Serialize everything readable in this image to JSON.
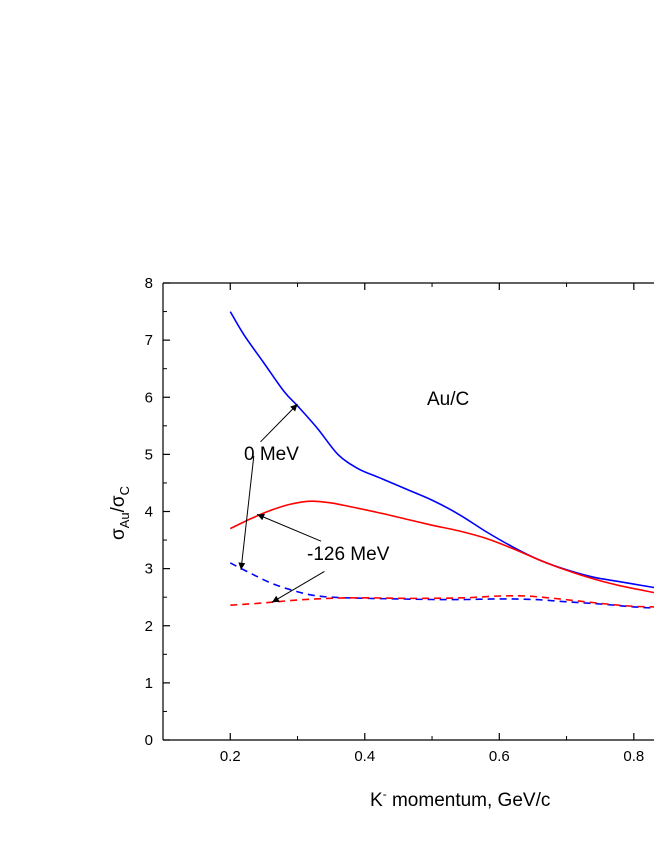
{
  "chart_data": {
    "type": "line",
    "title": "",
    "xlabel": {
      "prefix": "K",
      "sup": "-",
      "rest": " momentum, GeV/c"
    },
    "ylabel": {
      "main1": "σ",
      "sub1": "Au",
      "slash": "/",
      "main2": "σ",
      "sub2": "C"
    },
    "xlim": [
      0.1,
      0.83
    ],
    "ylim": [
      0,
      8
    ],
    "xticks": [
      "0.2",
      "0.4",
      "0.6",
      "0.8"
    ],
    "xtick_values": [
      0.2,
      0.4,
      0.6,
      0.8
    ],
    "yticks": [
      "0",
      "1",
      "2",
      "3",
      "4",
      "5",
      "6",
      "7",
      "8"
    ],
    "ytick_values": [
      0,
      1,
      2,
      3,
      4,
      5,
      6,
      7,
      8
    ],
    "grid": false,
    "annotations": {
      "label": "Au/C",
      "zero": "0 MeV",
      "minus": "-126 MeV"
    },
    "series": [
      {
        "color": "#0000ff",
        "dash": false,
        "points": [
          [
            0.2,
            7.5
          ],
          [
            0.22,
            7.1
          ],
          [
            0.25,
            6.6
          ],
          [
            0.28,
            6.1
          ],
          [
            0.3,
            5.85
          ],
          [
            0.33,
            5.45
          ],
          [
            0.36,
            5.0
          ],
          [
            0.39,
            4.75
          ],
          [
            0.42,
            4.6
          ],
          [
            0.46,
            4.4
          ],
          [
            0.5,
            4.2
          ],
          [
            0.54,
            3.95
          ],
          [
            0.58,
            3.65
          ],
          [
            0.62,
            3.38
          ],
          [
            0.66,
            3.15
          ],
          [
            0.7,
            2.98
          ],
          [
            0.74,
            2.85
          ],
          [
            0.78,
            2.77
          ],
          [
            0.83,
            2.67
          ]
        ]
      },
      {
        "color": "#ff0000",
        "dash": false,
        "points": [
          [
            0.2,
            3.7
          ],
          [
            0.23,
            3.87
          ],
          [
            0.26,
            4.02
          ],
          [
            0.29,
            4.13
          ],
          [
            0.32,
            4.18
          ],
          [
            0.35,
            4.15
          ],
          [
            0.38,
            4.08
          ],
          [
            0.42,
            3.98
          ],
          [
            0.46,
            3.87
          ],
          [
            0.5,
            3.76
          ],
          [
            0.54,
            3.66
          ],
          [
            0.58,
            3.53
          ],
          [
            0.62,
            3.35
          ],
          [
            0.66,
            3.15
          ],
          [
            0.7,
            2.97
          ],
          [
            0.74,
            2.82
          ],
          [
            0.78,
            2.7
          ],
          [
            0.83,
            2.58
          ]
        ]
      },
      {
        "color": "#0000ff",
        "dash": true,
        "points": [
          [
            0.2,
            3.1
          ],
          [
            0.23,
            2.92
          ],
          [
            0.26,
            2.75
          ],
          [
            0.29,
            2.63
          ],
          [
            0.32,
            2.54
          ],
          [
            0.35,
            2.5
          ],
          [
            0.4,
            2.48
          ],
          [
            0.45,
            2.47
          ],
          [
            0.5,
            2.46
          ],
          [
            0.55,
            2.46
          ],
          [
            0.6,
            2.47
          ],
          [
            0.65,
            2.46
          ],
          [
            0.7,
            2.42
          ],
          [
            0.75,
            2.38
          ],
          [
            0.8,
            2.33
          ],
          [
            0.83,
            2.31
          ]
        ]
      },
      {
        "color": "#ff0000",
        "dash": true,
        "points": [
          [
            0.2,
            2.36
          ],
          [
            0.25,
            2.4
          ],
          [
            0.3,
            2.45
          ],
          [
            0.35,
            2.48
          ],
          [
            0.4,
            2.49
          ],
          [
            0.45,
            2.48
          ],
          [
            0.5,
            2.48
          ],
          [
            0.55,
            2.49
          ],
          [
            0.6,
            2.52
          ],
          [
            0.64,
            2.52
          ],
          [
            0.68,
            2.48
          ],
          [
            0.72,
            2.43
          ],
          [
            0.76,
            2.38
          ],
          [
            0.8,
            2.34
          ],
          [
            0.83,
            2.33
          ]
        ]
      }
    ],
    "arrows": [
      {
        "from": [
          0.245,
          5.22
        ],
        "to": [
          0.3,
          5.88
        ]
      },
      {
        "from": [
          0.235,
          4.97
        ],
        "to": [
          0.216,
          2.98
        ]
      },
      {
        "from": [
          0.335,
          3.48
        ],
        "to": [
          0.24,
          3.95
        ]
      },
      {
        "from": [
          0.34,
          2.95
        ],
        "to": [
          0.262,
          2.41
        ]
      }
    ]
  }
}
